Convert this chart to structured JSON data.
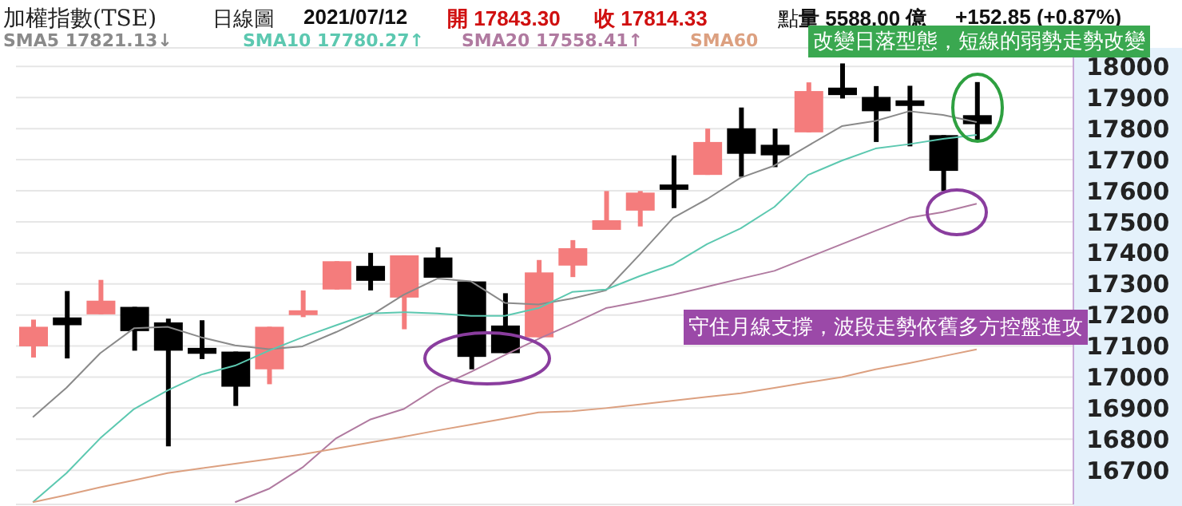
{
  "chart_data": {
    "type": "candlestick",
    "title": "加權指數(TSE)",
    "annotations": [
      "日線圖",
      "2021/07/12",
      "開 17843.30",
      "收 17814.33",
      "點",
      "量 5588.00 億",
      "+152.85 (+0.87%)",
      {
        "text": "改變日落型態，短線的弱勢走勢改變"
      },
      {
        "text": "守住月線支撐，波段走勢依舊多方控盤進攻"
      }
    ],
    "categories": [
      null,
      null,
      null,
      null,
      null,
      null,
      null,
      null,
      null,
      null,
      null,
      null,
      null,
      null,
      null,
      null,
      null,
      null,
      null,
      null,
      null,
      null,
      null,
      null,
      null,
      null,
      null,
      null,
      null
    ],
    "ohlc": [
      [
        17099,
        17185,
        17063,
        17162
      ],
      [
        17192,
        17277,
        17060,
        17167
      ],
      [
        17202,
        17313,
        17202,
        17246
      ],
      [
        17226,
        17226,
        17085,
        17148
      ],
      [
        17176,
        17188,
        16777,
        17085
      ],
      [
        17094,
        17183,
        17058,
        17075
      ],
      [
        17082,
        17082,
        16907,
        16969
      ],
      [
        17025,
        17162,
        16977,
        17162
      ],
      [
        17200,
        17279,
        17193,
        17215
      ],
      [
        17282,
        17373,
        17282,
        17373
      ],
      [
        17358,
        17400,
        17279,
        17310
      ],
      [
        17256,
        17392,
        17154,
        17392
      ],
      [
        17385,
        17418,
        17320,
        17320
      ],
      [
        17308,
        17308,
        17025,
        17065
      ],
      [
        17166,
        17270,
        17077,
        17077
      ],
      [
        17128,
        17377,
        17128,
        17337
      ],
      [
        17359,
        17441,
        17322,
        17415
      ],
      [
        17474,
        17599,
        17474,
        17505
      ],
      [
        17536,
        17599,
        17485,
        17594
      ],
      [
        17620,
        17714,
        17544,
        17603
      ],
      [
        17651,
        17800,
        17651,
        17757
      ],
      [
        17801,
        17868,
        17645,
        17719
      ],
      [
        17748,
        17800,
        17676,
        17714
      ],
      [
        17788,
        17949,
        17788,
        17921
      ],
      [
        17932,
        18010,
        17897,
        17908
      ],
      [
        17902,
        17937,
        17757,
        17856
      ],
      [
        17891,
        17938,
        17743,
        17873
      ],
      [
        17779,
        17779,
        17599,
        17664
      ],
      [
        17843.3,
        17950,
        17762,
        17814.33
      ]
    ],
    "colors": [
      "#f47c7c",
      "#000000",
      "#f47c7c",
      "#000000",
      "#000000",
      "#000000",
      "#000000",
      "#f47c7c",
      "#f47c7c",
      "#f47c7c",
      "#000000",
      "#f47c7c",
      "#000000",
      "#000000",
      "#000000",
      "#f47c7c",
      "#f47c7c",
      "#f47c7c",
      "#f47c7c",
      "#000000",
      "#f47c7c",
      "#000000",
      "#000000",
      "#f47c7c",
      "#000000",
      "#000000",
      "#000000",
      "#000000",
      "#000000"
    ],
    "series": [
      {
        "name": "SMA5 17821.13↓",
        "type": "line",
        "color": "#8a8a8a",
        "values": [
          16871,
          16966,
          17077,
          17157,
          17162,
          17128,
          17102,
          17090,
          17099,
          17145,
          17197,
          17265,
          17317,
          17308,
          17239,
          17234,
          17253,
          17279,
          17394,
          17513,
          17573,
          17642,
          17681,
          17745,
          17808,
          17825,
          17856,
          17844,
          17821
        ]
      },
      {
        "name": "SMA10 17780.27↑",
        "type": "line",
        "color": "#5cc8b0",
        "values": [
          16597,
          16691,
          16803,
          16897,
          16957,
          17008,
          17037,
          17085,
          17128,
          17167,
          17205,
          17209,
          17205,
          17197,
          17197,
          17222,
          17274,
          17282,
          17325,
          17363,
          17428,
          17479,
          17548,
          17651,
          17697,
          17736,
          17750,
          17767,
          17780
        ]
      },
      {
        "name": "SMA20 17558.41↑",
        "type": "line",
        "color": "#b07aa0",
        "values": [
          null,
          null,
          null,
          null,
          null,
          null,
          16597,
          16640,
          16709,
          16803,
          16863,
          16897,
          16966,
          17017,
          17071,
          17123,
          17171,
          17222,
          17243,
          17265,
          17291,
          17317,
          17342,
          17385,
          17428,
          17471,
          17513,
          17531,
          17558
        ]
      },
      {
        "name": "SMA60",
        "type": "line",
        "color": "#dca080",
        "values": [
          16597,
          16620,
          16645,
          16668,
          16691,
          16706,
          16721,
          16736,
          16751,
          16770,
          16789,
          16808,
          16828,
          16847,
          16866,
          16886,
          16890,
          16900,
          16912,
          16924,
          16936,
          16948,
          16965,
          16983,
          17000,
          17025,
          17045,
          17067,
          17089
        ]
      }
    ],
    "ylim": [
      16590,
      18060
    ],
    "yticks": [
      16700,
      16800,
      16900,
      17000,
      17100,
      17200,
      17300,
      17400,
      17500,
      17600,
      17700,
      17800,
      17900,
      18000
    ],
    "grid": "y",
    "legend": "top left",
    "tick_labels": "y"
  }
}
